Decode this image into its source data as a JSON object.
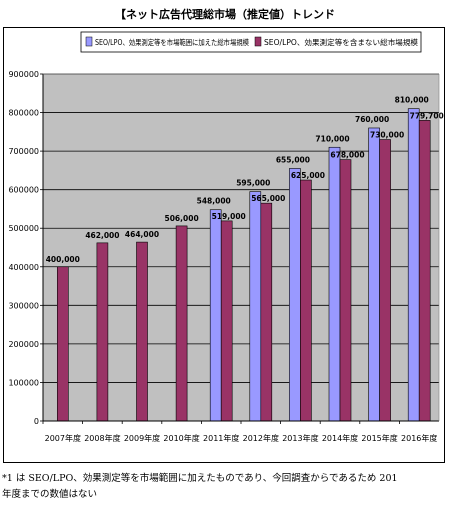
{
  "title": "【ネット広告代理総市場（推定値）トレンド",
  "footnote": {
    "line1": "*1 は SEO/LPO、効果測定等を市場範囲に加えたものであり、今回調査からであるため 201",
    "line2": "年度までの数値はない"
  },
  "colors": {
    "plot_bg": "#c0c0c0",
    "series_with": "#9999ff",
    "series_without": "#993366",
    "grid": "#000000"
  },
  "chart_data": {
    "type": "bar",
    "title": "【ネット広告代理総市場（推定値）トレンド",
    "xlabel": "",
    "ylabel": "",
    "ylim": [
      0,
      900000
    ],
    "yticks": [
      "0",
      "100000",
      "200000",
      "300000",
      "400000",
      "500000",
      "600000",
      "700000",
      "800000",
      "900000"
    ],
    "grid": true,
    "legend_position": "top",
    "categories": [
      "2007年度",
      "2008年度",
      "2009年度",
      "2010年度",
      "2011年度",
      "2012年度",
      "2013年度",
      "2014年度",
      "2015年度",
      "2016年度"
    ],
    "series": [
      {
        "name": "SEO/LPO、効果測定等を市場範囲に加えた総市場規模",
        "color": "#9999ff",
        "values": [
          null,
          null,
          null,
          null,
          548000,
          595000,
          655000,
          710000,
          760000,
          810000
        ],
        "labels": [
          "",
          "",
          "",
          "",
          "548,000",
          "595,000",
          "655,000",
          "710,000",
          "760,000",
          "810,000"
        ]
      },
      {
        "name": "SEO/LPO、効果測定等を含まない総市場規模",
        "color": "#993366",
        "values": [
          400000,
          462000,
          464000,
          506000,
          519000,
          565000,
          625000,
          678000,
          730000,
          779700
        ],
        "labels": [
          "400,000",
          "462,000",
          "464,000",
          "506,000",
          "519,000",
          "565,000",
          "625,000",
          "678,000",
          "730,000",
          "779,700"
        ]
      }
    ]
  }
}
